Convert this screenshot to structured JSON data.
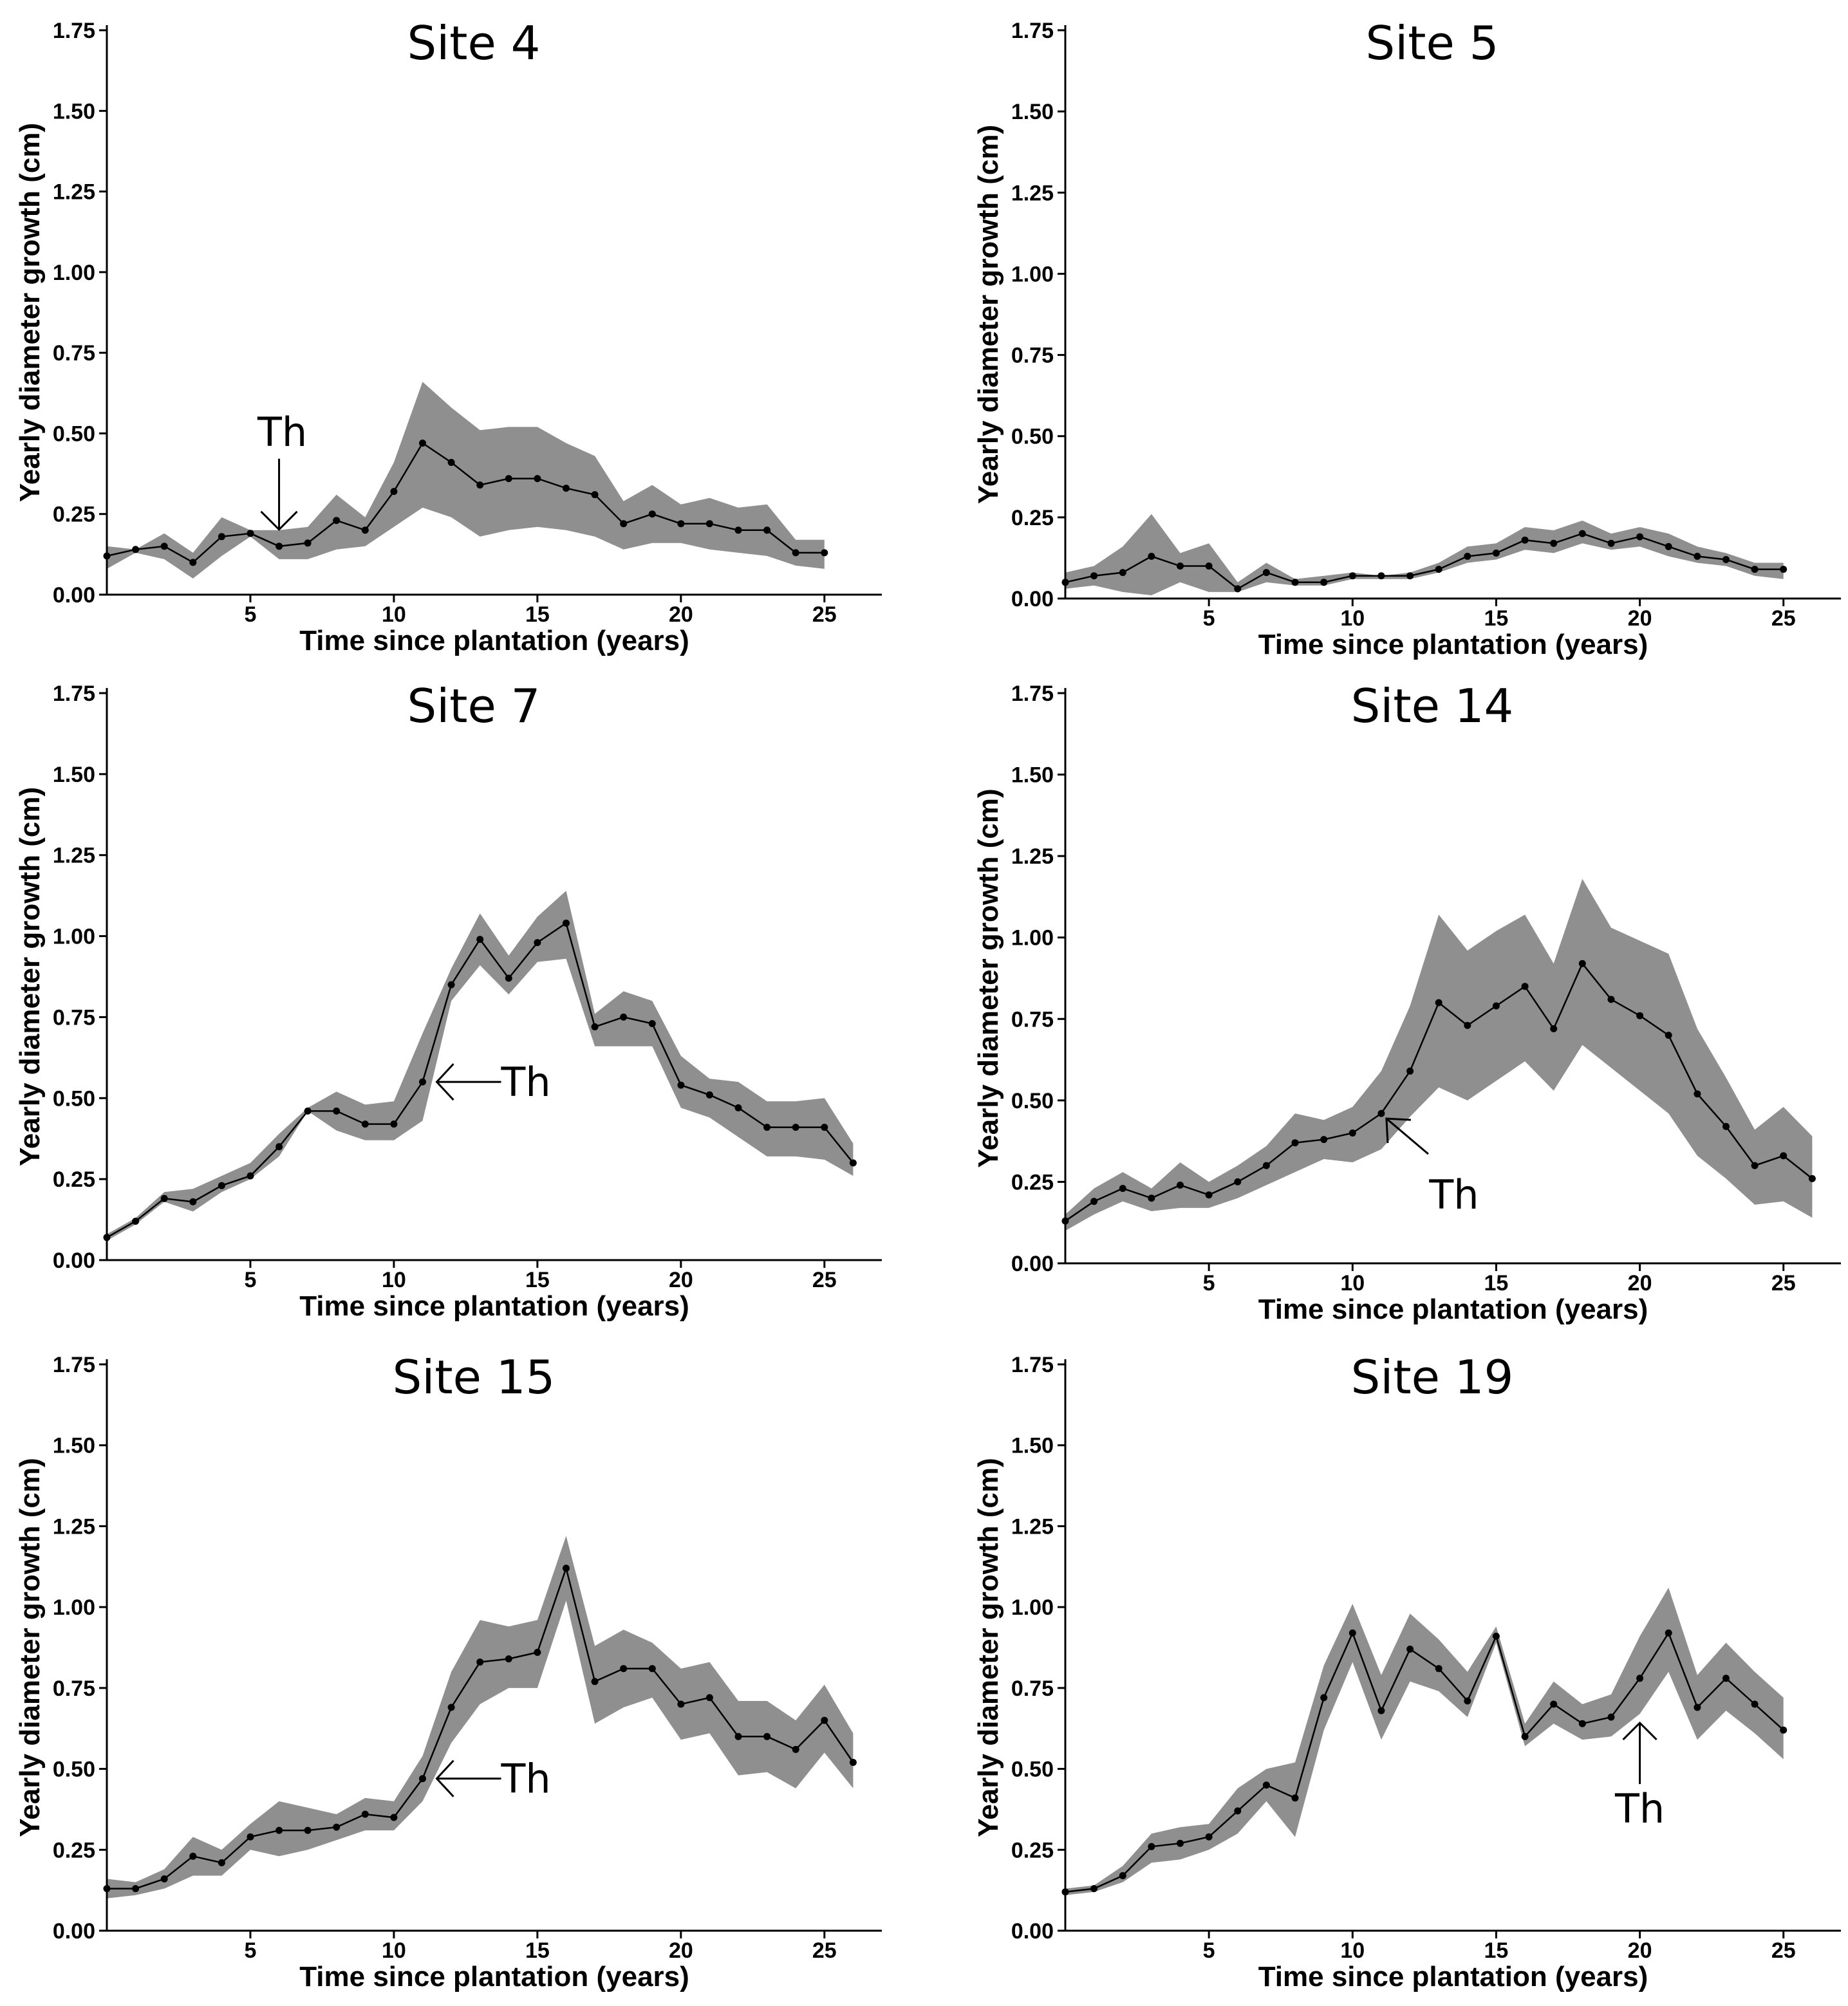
{
  "chart_data": [
    {
      "type": "line",
      "title": "Site 4",
      "xlabel": "Time since plantation (years)",
      "ylabel": "Yearly diameter growth (cm)",
      "xlim": [
        0,
        27
      ],
      "ylim": [
        0,
        1.75
      ],
      "xticks": [
        5,
        10,
        15,
        20,
        25
      ],
      "yticks": [
        "0.00",
        "0.25",
        "0.50",
        "0.75",
        "1.00",
        "1.25",
        "1.50",
        "1.75"
      ],
      "x": [
        0,
        1,
        2,
        3,
        4,
        5,
        6,
        7,
        8,
        9,
        10,
        11,
        12,
        13,
        14,
        15,
        16,
        17,
        18,
        19,
        20,
        21,
        22,
        23,
        24,
        25
      ],
      "mean": [
        0.12,
        0.14,
        0.15,
        0.1,
        0.18,
        0.19,
        0.15,
        0.16,
        0.23,
        0.2,
        0.32,
        0.47,
        0.41,
        0.34,
        0.36,
        0.36,
        0.33,
        0.31,
        0.22,
        0.25,
        0.22,
        0.22,
        0.2,
        0.2,
        0.13,
        0.13
      ],
      "lower": [
        0.08,
        0.13,
        0.11,
        0.05,
        0.12,
        0.18,
        0.11,
        0.11,
        0.14,
        0.15,
        0.21,
        0.27,
        0.24,
        0.18,
        0.2,
        0.21,
        0.2,
        0.18,
        0.14,
        0.16,
        0.16,
        0.14,
        0.13,
        0.12,
        0.09,
        0.08
      ],
      "upper": [
        0.15,
        0.14,
        0.19,
        0.13,
        0.24,
        0.2,
        0.2,
        0.21,
        0.31,
        0.24,
        0.41,
        0.66,
        0.58,
        0.51,
        0.52,
        0.52,
        0.47,
        0.43,
        0.29,
        0.34,
        0.28,
        0.3,
        0.27,
        0.28,
        0.17,
        0.17
      ],
      "annotation": {
        "text": "Th",
        "x": 6,
        "y": 0.19,
        "direction": "down"
      }
    },
    {
      "type": "line",
      "title": "Site 5",
      "xlabel": "Time since plantation (years)",
      "ylabel": "Yearly diameter growth (cm)",
      "xlim": [
        0,
        27
      ],
      "ylim": [
        0,
        1.75
      ],
      "xticks": [
        5,
        10,
        15,
        20,
        25
      ],
      "yticks": [
        "0.00",
        "0.25",
        "0.50",
        "0.75",
        "1.00",
        "1.25",
        "1.50",
        "1.75"
      ],
      "x": [
        0,
        1,
        2,
        3,
        4,
        5,
        6,
        7,
        8,
        9,
        10,
        11,
        12,
        13,
        14,
        15,
        16,
        17,
        18,
        19,
        20,
        21,
        22,
        23,
        24,
        25
      ],
      "mean": [
        0.05,
        0.07,
        0.08,
        0.13,
        0.1,
        0.1,
        0.03,
        0.08,
        0.05,
        0.05,
        0.07,
        0.07,
        0.07,
        0.09,
        0.13,
        0.14,
        0.18,
        0.17,
        0.2,
        0.17,
        0.19,
        0.16,
        0.13,
        0.12,
        0.09,
        0.09
      ],
      "lower": [
        0.03,
        0.04,
        0.02,
        0.01,
        0.05,
        0.02,
        0.02,
        0.05,
        0.04,
        0.04,
        0.06,
        0.06,
        0.06,
        0.08,
        0.11,
        0.12,
        0.15,
        0.14,
        0.17,
        0.15,
        0.16,
        0.13,
        0.11,
        0.1,
        0.07,
        0.06
      ],
      "upper": [
        0.08,
        0.1,
        0.16,
        0.26,
        0.14,
        0.17,
        0.05,
        0.11,
        0.06,
        0.07,
        0.08,
        0.07,
        0.08,
        0.11,
        0.16,
        0.17,
        0.22,
        0.21,
        0.24,
        0.2,
        0.22,
        0.2,
        0.16,
        0.14,
        0.11,
        0.11
      ],
      "annotation": null
    },
    {
      "type": "line",
      "title": "Site 7",
      "xlabel": "Time since plantation (years)",
      "ylabel": "Yearly diameter growth (cm)",
      "xlim": [
        0,
        27
      ],
      "ylim": [
        0,
        1.75
      ],
      "xticks": [
        5,
        10,
        15,
        20,
        25
      ],
      "yticks": [
        "0.00",
        "0.25",
        "0.50",
        "0.75",
        "1.00",
        "1.25",
        "1.50",
        "1.75"
      ],
      "x": [
        0,
        1,
        2,
        3,
        4,
        5,
        6,
        7,
        8,
        9,
        10,
        11,
        12,
        13,
        14,
        15,
        16,
        17,
        18,
        19,
        20,
        21,
        22,
        23,
        24,
        25,
        26
      ],
      "mean": [
        0.07,
        0.12,
        0.19,
        0.18,
        0.23,
        0.26,
        0.35,
        0.46,
        0.46,
        0.42,
        0.42,
        0.55,
        0.85,
        0.99,
        0.87,
        0.98,
        1.04,
        0.72,
        0.75,
        0.73,
        0.54,
        0.51,
        0.47,
        0.41,
        0.41,
        0.41,
        0.3
      ],
      "lower": [
        0.06,
        0.11,
        0.18,
        0.15,
        0.21,
        0.25,
        0.32,
        0.46,
        0.4,
        0.37,
        0.37,
        0.43,
        0.8,
        0.91,
        0.82,
        0.92,
        0.93,
        0.66,
        0.66,
        0.66,
        0.47,
        0.44,
        0.38,
        0.32,
        0.32,
        0.31,
        0.26
      ],
      "upper": [
        0.08,
        0.13,
        0.21,
        0.22,
        0.26,
        0.3,
        0.39,
        0.47,
        0.52,
        0.48,
        0.49,
        0.7,
        0.9,
        1.07,
        0.94,
        1.06,
        1.14,
        0.76,
        0.83,
        0.8,
        0.63,
        0.56,
        0.55,
        0.49,
        0.49,
        0.5,
        0.36
      ],
      "annotation": {
        "text": "Th",
        "x": 11,
        "y": 0.55,
        "direction": "left"
      }
    },
    {
      "type": "line",
      "title": "Site 14",
      "xlabel": "Time since plantation (years)",
      "ylabel": "Yearly diameter growth (cm)",
      "xlim": [
        0,
        27
      ],
      "ylim": [
        0,
        1.75
      ],
      "xticks": [
        5,
        10,
        15,
        20,
        25
      ],
      "yticks": [
        "0.00",
        "0.25",
        "0.50",
        "0.75",
        "1.00",
        "1.25",
        "1.50",
        "1.75"
      ],
      "x": [
        0,
        1,
        2,
        3,
        4,
        5,
        6,
        7,
        8,
        9,
        10,
        11,
        12,
        13,
        14,
        15,
        16,
        17,
        18,
        19,
        20,
        21,
        22,
        23,
        24,
        25,
        26
      ],
      "mean": [
        0.13,
        0.19,
        0.23,
        0.2,
        0.24,
        0.21,
        0.25,
        0.3,
        0.37,
        0.38,
        0.4,
        0.46,
        0.59,
        0.8,
        0.73,
        0.79,
        0.85,
        0.72,
        0.92,
        0.81,
        0.76,
        0.7,
        0.52,
        0.42,
        0.3,
        0.33,
        0.26
      ],
      "lower": [
        0.1,
        0.15,
        0.19,
        0.16,
        0.17,
        0.17,
        0.2,
        0.24,
        0.28,
        0.32,
        0.31,
        0.35,
        0.45,
        0.54,
        0.5,
        0.56,
        0.62,
        0.53,
        0.67,
        0.6,
        0.53,
        0.46,
        0.33,
        0.26,
        0.18,
        0.19,
        0.14
      ],
      "upper": [
        0.15,
        0.23,
        0.28,
        0.23,
        0.31,
        0.25,
        0.3,
        0.36,
        0.46,
        0.44,
        0.48,
        0.59,
        0.79,
        1.07,
        0.96,
        1.02,
        1.07,
        0.92,
        1.18,
        1.03,
        0.99,
        0.95,
        0.72,
        0.57,
        0.41,
        0.48,
        0.39
      ],
      "annotation": {
        "text": "Th",
        "x": 11,
        "y": 0.46,
        "direction": "up-left"
      }
    },
    {
      "type": "line",
      "title": "Site 15",
      "xlabel": "Time since plantation (years)",
      "ylabel": "Yearly diameter growth (cm)",
      "xlim": [
        0,
        27
      ],
      "ylim": [
        0,
        1.75
      ],
      "xticks": [
        5,
        10,
        15,
        20,
        25
      ],
      "yticks": [
        "0.00",
        "0.25",
        "0.50",
        "0.75",
        "1.00",
        "1.25",
        "1.50",
        "1.75"
      ],
      "x": [
        0,
        1,
        2,
        3,
        4,
        5,
        6,
        7,
        8,
        9,
        10,
        11,
        12,
        13,
        14,
        15,
        16,
        17,
        18,
        19,
        20,
        21,
        22,
        23,
        24,
        25,
        26
      ],
      "mean": [
        0.13,
        0.13,
        0.16,
        0.23,
        0.21,
        0.29,
        0.31,
        0.31,
        0.32,
        0.36,
        0.35,
        0.47,
        0.69,
        0.83,
        0.84,
        0.86,
        1.12,
        0.77,
        0.81,
        0.81,
        0.7,
        0.72,
        0.6,
        0.6,
        0.56,
        0.65,
        0.52
      ],
      "lower": [
        0.1,
        0.11,
        0.13,
        0.17,
        0.17,
        0.25,
        0.23,
        0.25,
        0.28,
        0.31,
        0.31,
        0.4,
        0.58,
        0.7,
        0.75,
        0.75,
        1.02,
        0.64,
        0.69,
        0.72,
        0.59,
        0.61,
        0.48,
        0.49,
        0.44,
        0.55,
        0.44
      ],
      "upper": [
        0.16,
        0.15,
        0.19,
        0.29,
        0.25,
        0.33,
        0.4,
        0.38,
        0.36,
        0.41,
        0.4,
        0.54,
        0.8,
        0.96,
        0.94,
        0.96,
        1.22,
        0.88,
        0.93,
        0.89,
        0.81,
        0.83,
        0.71,
        0.71,
        0.65,
        0.76,
        0.61
      ],
      "annotation": {
        "text": "Th",
        "x": 11,
        "y": 0.47,
        "direction": "left"
      }
    },
    {
      "type": "line",
      "title": "Site 19",
      "xlabel": "Time since plantation (years)",
      "ylabel": "Yearly diameter growth (cm)",
      "xlim": [
        0,
        27
      ],
      "ylim": [
        0,
        1.75
      ],
      "xticks": [
        5,
        10,
        15,
        20,
        25
      ],
      "yticks": [
        "0.00",
        "0.25",
        "0.50",
        "0.75",
        "1.00",
        "1.25",
        "1.50",
        "1.75"
      ],
      "x": [
        0,
        1,
        2,
        3,
        4,
        5,
        6,
        7,
        8,
        9,
        10,
        11,
        12,
        13,
        14,
        15,
        16,
        17,
        18,
        19,
        20,
        21,
        22,
        23,
        24,
        25
      ],
      "mean": [
        0.12,
        0.13,
        0.17,
        0.26,
        0.27,
        0.29,
        0.37,
        0.45,
        0.41,
        0.72,
        0.92,
        0.68,
        0.87,
        0.81,
        0.71,
        0.91,
        0.6,
        0.7,
        0.64,
        0.66,
        0.78,
        0.92,
        0.69,
        0.78,
        0.7,
        0.62
      ],
      "lower": [
        0.11,
        0.12,
        0.15,
        0.21,
        0.22,
        0.25,
        0.3,
        0.4,
        0.29,
        0.62,
        0.83,
        0.59,
        0.77,
        0.74,
        0.66,
        0.89,
        0.57,
        0.64,
        0.59,
        0.6,
        0.67,
        0.8,
        0.59,
        0.68,
        0.61,
        0.53
      ],
      "upper": [
        0.13,
        0.14,
        0.2,
        0.3,
        0.32,
        0.33,
        0.44,
        0.5,
        0.52,
        0.82,
        1.01,
        0.79,
        0.98,
        0.9,
        0.8,
        0.94,
        0.64,
        0.77,
        0.7,
        0.73,
        0.91,
        1.06,
        0.79,
        0.89,
        0.8,
        0.72
      ],
      "annotation": {
        "text": "Th",
        "x": 20,
        "y": 0.67,
        "direction": "up"
      }
    }
  ]
}
